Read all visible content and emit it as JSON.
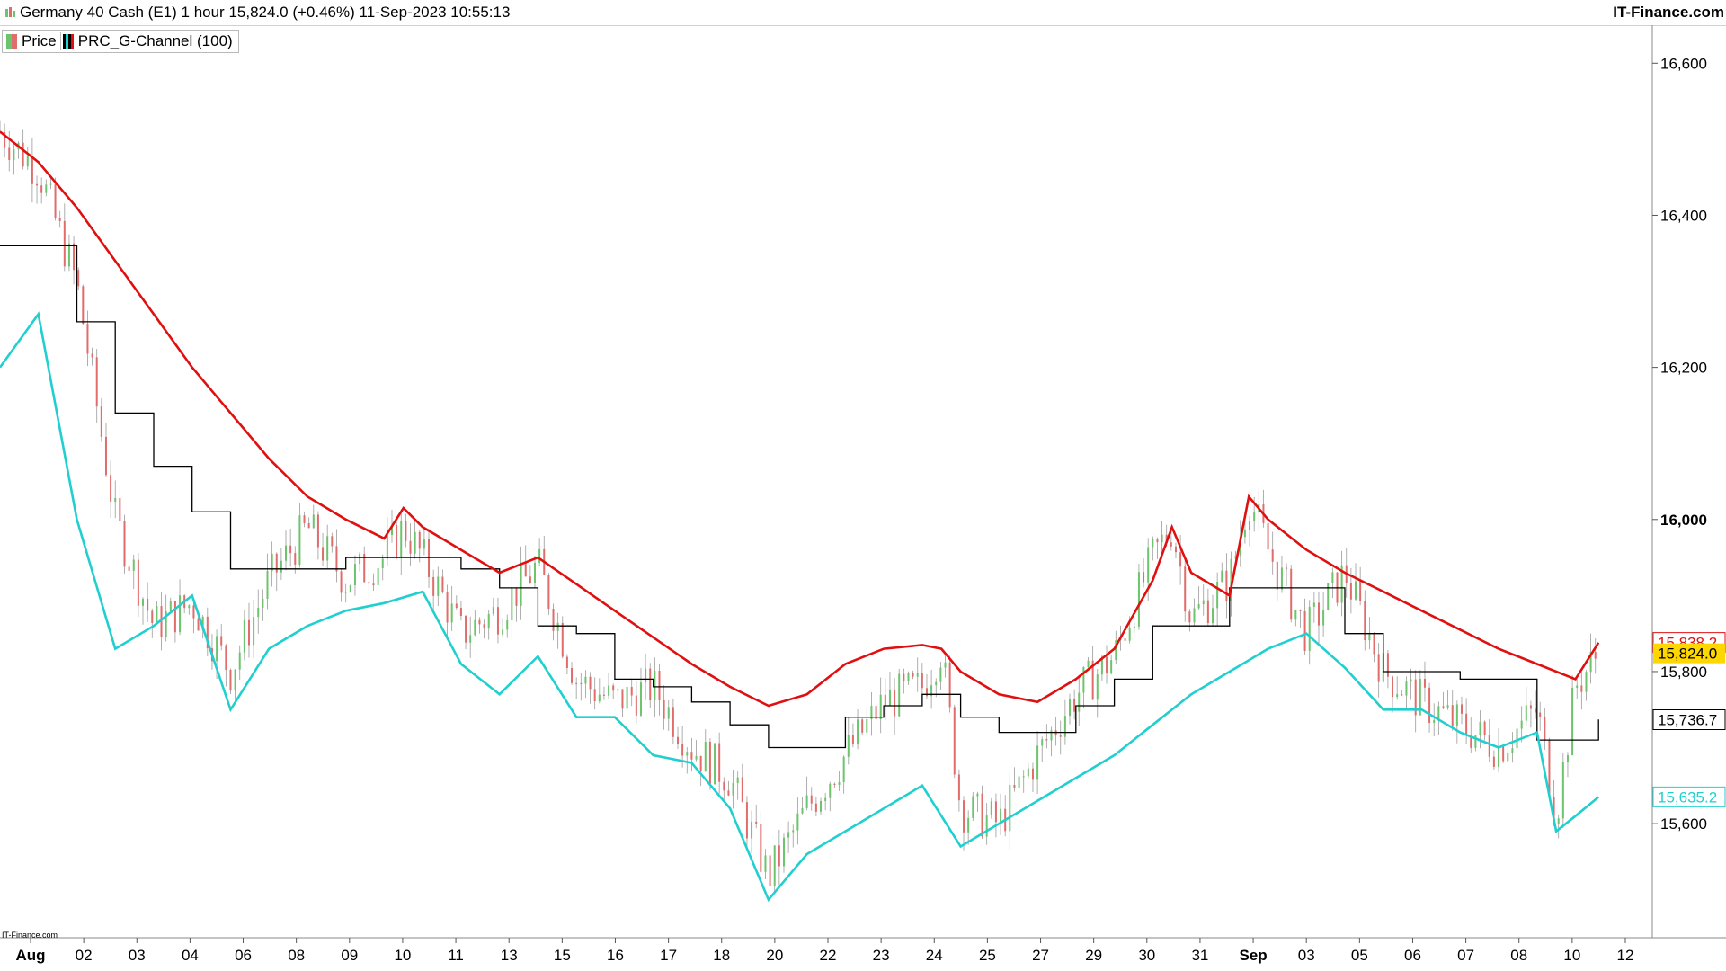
{
  "header": {
    "title": "Germany 40 Cash (E1) 1 hour 15,824.0 (+0.46%) 11-Sep-2023 10:55:13",
    "brand": "IT-Finance.com"
  },
  "legend": {
    "price_label": "Price",
    "indicator_label": "PRC_G-Channel (100)"
  },
  "watermark": "IT-Finance.com",
  "colors": {
    "upper_band": "#e01010",
    "lower_band": "#22cfcf",
    "mid_line": "#000000",
    "candle_up": "#6cc46c",
    "candle_down": "#e06c6c",
    "current_price_badge": "#ffd700"
  },
  "chart_data": {
    "type": "line",
    "title": "Germany 40 Cash (E1) 1 hour",
    "timeframe": "1 hour",
    "ylim": [
      15450,
      16650
    ],
    "x_ticks": [
      "Aug",
      "02",
      "03",
      "04",
      "06",
      "08",
      "09",
      "10",
      "11",
      "13",
      "15",
      "16",
      "17",
      "18",
      "20",
      "22",
      "23",
      "24",
      "25",
      "27",
      "29",
      "30",
      "31",
      "Sep",
      "03",
      "05",
      "06",
      "07",
      "08",
      "10",
      "12"
    ],
    "y_ticks": [
      {
        "value": 16600,
        "label": "16,600"
      },
      {
        "value": 16400,
        "label": "16,400"
      },
      {
        "value": 16200,
        "label": "16,200"
      },
      {
        "value": 16000,
        "label": "16,000"
      },
      {
        "value": 15800,
        "label": "15,800"
      },
      {
        "value": 15600,
        "label": "15,600"
      }
    ],
    "price_badges": [
      {
        "value": 15838.2,
        "label": "15,838.2",
        "series": "upper"
      },
      {
        "value": 15824.0,
        "label": "15,824.0",
        "series": "price"
      },
      {
        "value": 15736.7,
        "label": "15,736.7",
        "series": "mid"
      },
      {
        "value": 15635.2,
        "label": "15,635.2",
        "series": "lower"
      }
    ],
    "series": [
      {
        "name": "upper",
        "values": [
          [
            0,
            16510
          ],
          [
            1,
            16470
          ],
          [
            2,
            16410
          ],
          [
            3,
            16340
          ],
          [
            4,
            16270
          ],
          [
            5,
            16200
          ],
          [
            6,
            16140
          ],
          [
            7,
            16080
          ],
          [
            8,
            16030
          ],
          [
            9,
            16000
          ],
          [
            10,
            15975
          ],
          [
            10.5,
            16015
          ],
          [
            11,
            15990
          ],
          [
            12,
            15960
          ],
          [
            13,
            15930
          ],
          [
            14,
            15950
          ],
          [
            15,
            15915
          ],
          [
            16,
            15880
          ],
          [
            17,
            15845
          ],
          [
            18,
            15810
          ],
          [
            19,
            15780
          ],
          [
            20,
            15755
          ],
          [
            21,
            15770
          ],
          [
            22,
            15810
          ],
          [
            23,
            15830
          ],
          [
            24,
            15835
          ],
          [
            24.5,
            15830
          ],
          [
            25,
            15800
          ],
          [
            26,
            15770
          ],
          [
            27,
            15760
          ],
          [
            28,
            15790
          ],
          [
            29,
            15830
          ],
          [
            30,
            15920
          ],
          [
            30.5,
            15990
          ],
          [
            31,
            15930
          ],
          [
            32,
            15900
          ],
          [
            32.5,
            16030
          ],
          [
            33,
            16000
          ],
          [
            34,
            15960
          ],
          [
            35,
            15930
          ],
          [
            36,
            15905
          ],
          [
            37,
            15880
          ],
          [
            38,
            15855
          ],
          [
            39,
            15830
          ],
          [
            40,
            15810
          ],
          [
            41,
            15790
          ],
          [
            41.6,
            15838
          ]
        ]
      },
      {
        "name": "mid",
        "values": [
          [
            0,
            16360
          ],
          [
            1,
            16360
          ],
          [
            2,
            16260
          ],
          [
            3,
            16140
          ],
          [
            4,
            16070
          ],
          [
            5,
            16010
          ],
          [
            6,
            15935
          ],
          [
            7,
            15935
          ],
          [
            8,
            15935
          ],
          [
            9,
            15950
          ],
          [
            10,
            15950
          ],
          [
            11,
            15950
          ],
          [
            12,
            15935
          ],
          [
            13,
            15910
          ],
          [
            14,
            15860
          ],
          [
            15,
            15850
          ],
          [
            16,
            15790
          ],
          [
            17,
            15780
          ],
          [
            18,
            15760
          ],
          [
            19,
            15730
          ],
          [
            20,
            15700
          ],
          [
            21,
            15700
          ],
          [
            22,
            15740
          ],
          [
            23,
            15755
          ],
          [
            24,
            15770
          ],
          [
            25,
            15740
          ],
          [
            26,
            15720
          ],
          [
            27,
            15720
          ],
          [
            28,
            15755
          ],
          [
            29,
            15790
          ],
          [
            30,
            15860
          ],
          [
            31,
            15860
          ],
          [
            32,
            15910
          ],
          [
            33,
            15910
          ],
          [
            34,
            15910
          ],
          [
            35,
            15850
          ],
          [
            36,
            15800
          ],
          [
            37,
            15800
          ],
          [
            38,
            15790
          ],
          [
            39,
            15790
          ],
          [
            40,
            15710
          ],
          [
            41,
            15710
          ],
          [
            41.6,
            15737
          ]
        ]
      },
      {
        "name": "lower",
        "values": [
          [
            0,
            16200
          ],
          [
            1,
            16270
          ],
          [
            2,
            16000
          ],
          [
            3,
            15830
          ],
          [
            4,
            15860
          ],
          [
            5,
            15900
          ],
          [
            6,
            15750
          ],
          [
            7,
            15830
          ],
          [
            8,
            15860
          ],
          [
            9,
            15880
          ],
          [
            10,
            15890
          ],
          [
            11,
            15905
          ],
          [
            12,
            15810
          ],
          [
            13,
            15770
          ],
          [
            14,
            15820
          ],
          [
            15,
            15740
          ],
          [
            16,
            15740
          ],
          [
            17,
            15690
          ],
          [
            18,
            15680
          ],
          [
            19,
            15620
          ],
          [
            20,
            15500
          ],
          [
            21,
            15560
          ],
          [
            22,
            15590
          ],
          [
            23,
            15620
          ],
          [
            24,
            15650
          ],
          [
            25,
            15570
          ],
          [
            26,
            15600
          ],
          [
            27,
            15630
          ],
          [
            28,
            15660
          ],
          [
            29,
            15690
          ],
          [
            30,
            15730
          ],
          [
            31,
            15770
          ],
          [
            32,
            15800
          ],
          [
            33,
            15830
          ],
          [
            34,
            15850
          ],
          [
            35,
            15805
          ],
          [
            36,
            15750
          ],
          [
            37,
            15750
          ],
          [
            38,
            15720
          ],
          [
            39,
            15700
          ],
          [
            40,
            15720
          ],
          [
            40.5,
            15590
          ],
          [
            41,
            15610
          ],
          [
            41.6,
            15635
          ]
        ]
      },
      {
        "name": "price",
        "values": [
          [
            0,
            16510
          ],
          [
            1,
            16460
          ],
          [
            2,
            16310
          ],
          [
            3,
            16000
          ],
          [
            4,
            15860
          ],
          [
            5,
            15890
          ],
          [
            6,
            15800
          ],
          [
            7,
            15920
          ],
          [
            8,
            15990
          ],
          [
            9,
            15920
          ],
          [
            10,
            15950
          ],
          [
            10.5,
            15990
          ],
          [
            11,
            15950
          ],
          [
            12,
            15850
          ],
          [
            13,
            15880
          ],
          [
            14,
            15940
          ],
          [
            15,
            15790
          ],
          [
            16,
            15760
          ],
          [
            17,
            15780
          ],
          [
            18,
            15700
          ],
          [
            19,
            15660
          ],
          [
            20,
            15530
          ],
          [
            21,
            15620
          ],
          [
            22,
            15690
          ],
          [
            23,
            15760
          ],
          [
            24,
            15780
          ],
          [
            24.5,
            15830
          ],
          [
            25,
            15620
          ],
          [
            26,
            15600
          ],
          [
            27,
            15690
          ],
          [
            28,
            15770
          ],
          [
            29,
            15820
          ],
          [
            30,
            15950
          ],
          [
            30.5,
            15990
          ],
          [
            31,
            15870
          ],
          [
            32,
            15920
          ],
          [
            32.5,
            16030
          ],
          [
            33,
            15960
          ],
          [
            34,
            15850
          ],
          [
            35,
            15930
          ],
          [
            36,
            15800
          ],
          [
            37,
            15760
          ],
          [
            38,
            15730
          ],
          [
            39,
            15700
          ],
          [
            40,
            15750
          ],
          [
            40.5,
            15610
          ],
          [
            41,
            15780
          ],
          [
            41.6,
            15824
          ]
        ]
      }
    ]
  }
}
